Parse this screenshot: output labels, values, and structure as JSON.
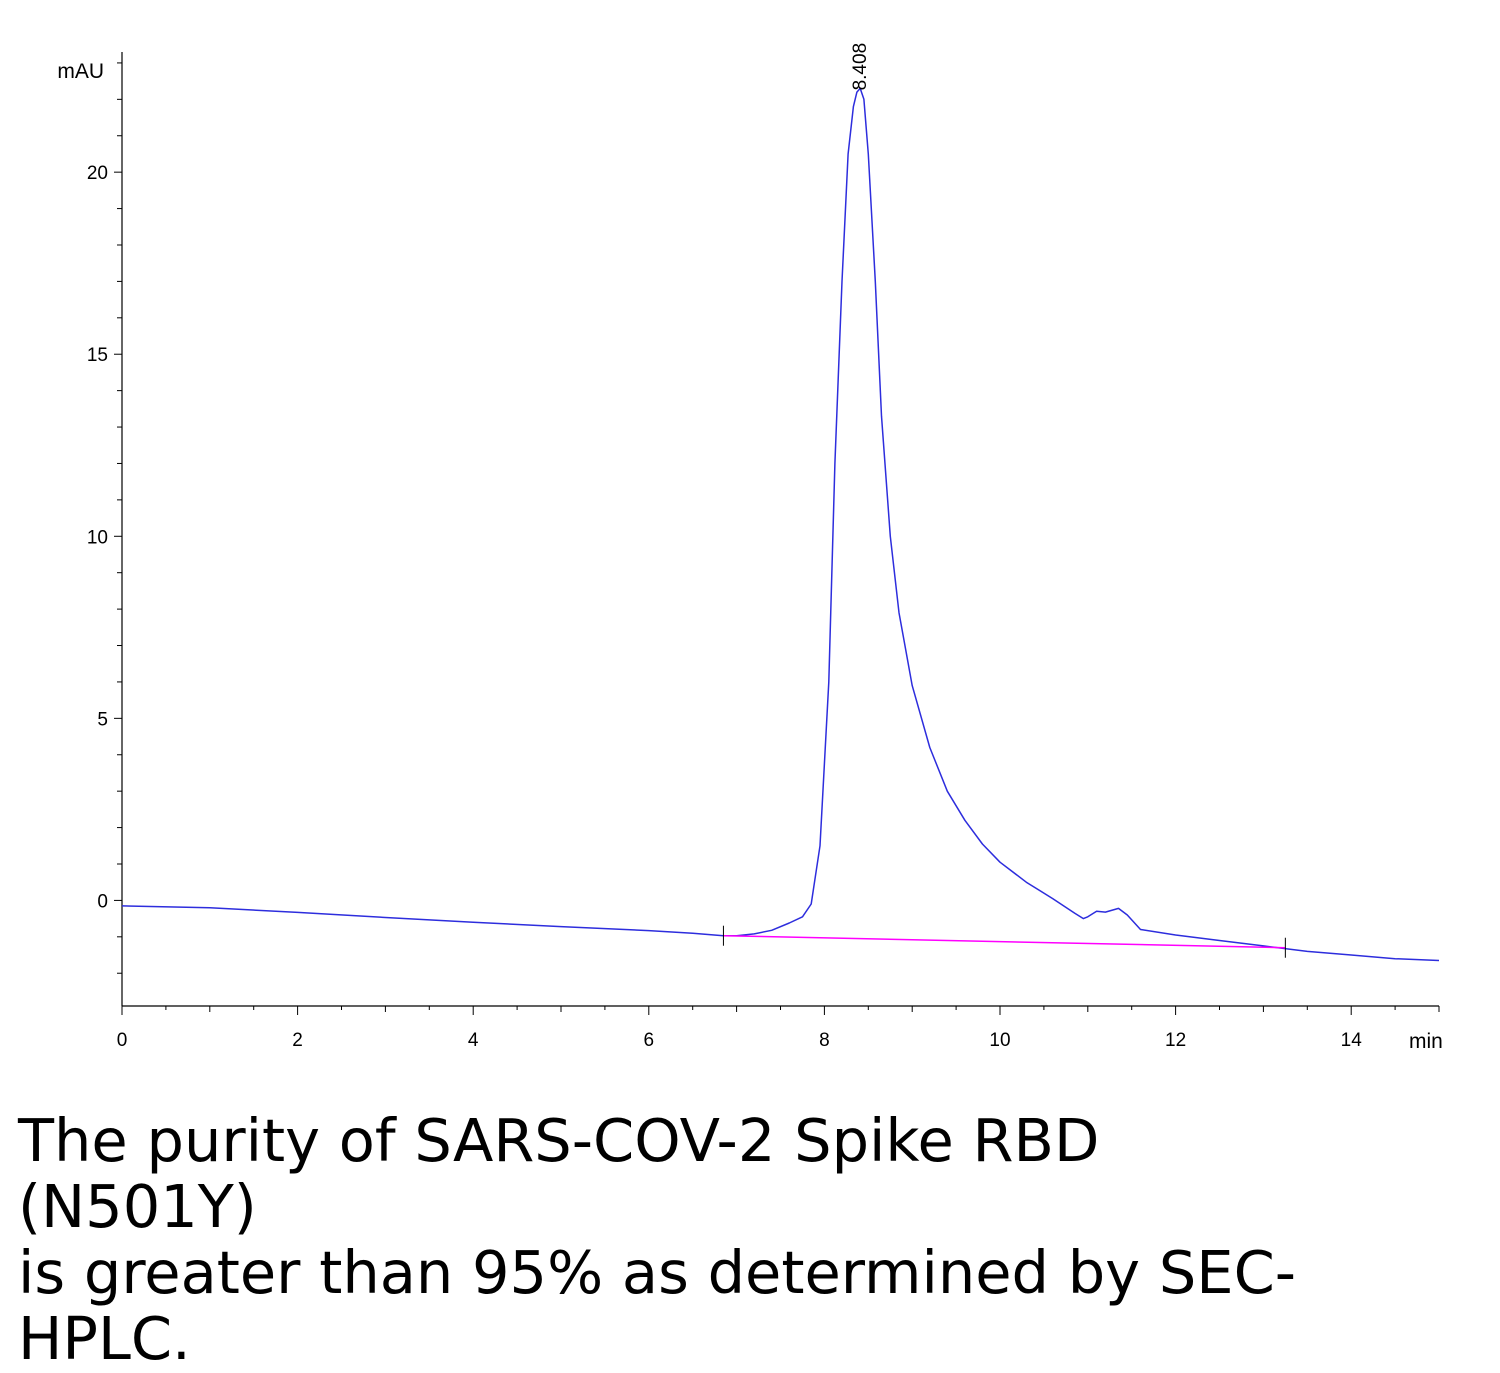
{
  "chart_data": {
    "type": "line",
    "xlabel": "min",
    "ylabel": "mAU",
    "xlim": [
      0,
      15
    ],
    "ylim": [
      -2.9,
      23.3
    ],
    "x_ticks": [
      "0",
      "2",
      "4",
      "6",
      "8",
      "10",
      "12",
      "14"
    ],
    "y_ticks": [
      "0",
      "5",
      "10",
      "15",
      "20"
    ],
    "grid": false,
    "series": [
      {
        "color": "#2d2ddd",
        "x": [
          0,
          1,
          2,
          3,
          4,
          5,
          6,
          6.5,
          6.85,
          7.0,
          7.2,
          7.4,
          7.6,
          7.75,
          7.85,
          7.95,
          8.05,
          8.12,
          8.2,
          8.27,
          8.33,
          8.37,
          8.408,
          8.45,
          8.5,
          8.58,
          8.65,
          8.75,
          8.85,
          9.0,
          9.2,
          9.4,
          9.6,
          9.8,
          10.0,
          10.3,
          10.6,
          10.85,
          10.95,
          11.0,
          11.1,
          11.2,
          11.35,
          11.45,
          11.6,
          12.0,
          12.5,
          13.0,
          13.5,
          14.0,
          14.5,
          15.0
        ],
        "y": [
          -0.15,
          -0.2,
          -0.33,
          -0.47,
          -0.6,
          -0.72,
          -0.83,
          -0.9,
          -0.97,
          -0.97,
          -0.92,
          -0.82,
          -0.62,
          -0.45,
          -0.1,
          1.5,
          6.0,
          12.0,
          17.0,
          20.5,
          21.8,
          22.2,
          22.3,
          22.0,
          20.5,
          17.0,
          13.3,
          10.0,
          7.9,
          5.9,
          4.2,
          3.0,
          2.2,
          1.55,
          1.05,
          0.5,
          0.05,
          -0.35,
          -0.5,
          -0.45,
          -0.3,
          -0.32,
          -0.22,
          -0.4,
          -0.8,
          -0.95,
          -1.1,
          -1.25,
          -1.4,
          -1.5,
          -1.6,
          -1.65
        ]
      },
      {
        "color": "#ff00ff",
        "x": [
          6.85,
          13.25
        ],
        "y": [
          -0.97,
          -1.3
        ]
      }
    ],
    "annotations": [
      {
        "text": "8.408",
        "x": 8.408,
        "y": 22.3
      }
    ],
    "markers": [
      6.85,
      13.25
    ]
  },
  "caption": "The purity of SARS-COV-2 Spike RBD (N501Y)\nis greater than 95% as determined by SEC-\nHPLC."
}
